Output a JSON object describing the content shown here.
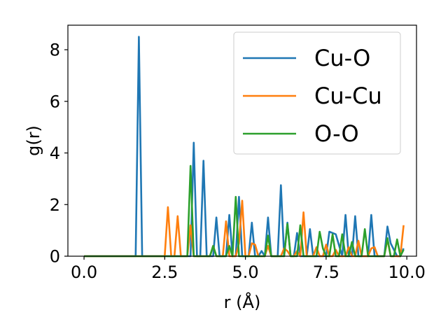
{
  "chart_data": {
    "type": "line",
    "xlabel": "r (Å)",
    "ylabel": "g(r)",
    "xlim": [
      -0.5,
      10.3
    ],
    "ylim": [
      0,
      8.95
    ],
    "xticks": [
      0.0,
      2.5,
      5.0,
      7.5,
      10.0
    ],
    "xtick_labels": [
      "0.0",
      "2.5",
      "5.0",
      "7.5",
      "10.0"
    ],
    "yticks": [
      0,
      2,
      4,
      6,
      8
    ],
    "ytick_labels": [
      "0",
      "2",
      "4",
      "6",
      "8"
    ],
    "grid": false,
    "legend_position": "top-right",
    "series": [
      {
        "name": "Cu-O",
        "color": "#1f77b4",
        "x": [
          0.0,
          1.6,
          1.7,
          1.8,
          3.3,
          3.4,
          3.5,
          3.6,
          3.7,
          3.8,
          4.0,
          4.1,
          4.2,
          4.4,
          4.5,
          4.6,
          4.7,
          4.8,
          4.9,
          5.1,
          5.2,
          5.3,
          5.4,
          5.5,
          5.6,
          5.7,
          5.8,
          5.9,
          6.0,
          6.1,
          6.2,
          6.3,
          6.4,
          6.5,
          6.6,
          6.7,
          6.8,
          6.9,
          7.0,
          7.1,
          7.3,
          7.4,
          7.5,
          7.6,
          7.7,
          7.8,
          8.0,
          8.1,
          8.2,
          8.3,
          8.4,
          8.5,
          8.7,
          8.8,
          8.9,
          9.0,
          9.3,
          9.4,
          9.5,
          9.7,
          9.8,
          9.9
        ],
        "y": [
          0.0,
          0.0,
          8.5,
          0.0,
          0.0,
          4.4,
          0.0,
          0.0,
          3.7,
          0.0,
          0.0,
          1.5,
          0.0,
          0.0,
          1.6,
          0.0,
          0.0,
          2.3,
          0.0,
          0.0,
          1.3,
          0.0,
          0.0,
          0.2,
          0.0,
          1.5,
          0.0,
          0.0,
          0.0,
          2.75,
          0.0,
          1.3,
          0.0,
          0.0,
          0.9,
          0.0,
          0.0,
          0.0,
          1.05,
          0.0,
          0.0,
          0.0,
          0.0,
          0.95,
          0.9,
          0.85,
          0.0,
          1.6,
          0.0,
          0.0,
          1.55,
          0.0,
          0.0,
          0.0,
          1.6,
          0.0,
          0.0,
          1.15,
          0.5,
          0.0,
          0.0,
          0.3
        ]
      },
      {
        "name": "Cu-Cu",
        "color": "#ff7f0e",
        "x": [
          0.0,
          2.5,
          2.6,
          2.7,
          2.8,
          2.9,
          3.0,
          3.1,
          3.2,
          3.3,
          3.4,
          3.9,
          4.0,
          4.1,
          4.2,
          4.3,
          4.4,
          4.5,
          4.6,
          4.7,
          4.8,
          4.9,
          5.0,
          5.1,
          5.2,
          5.3,
          5.4,
          5.5,
          5.6,
          5.7,
          5.8,
          5.9,
          6.0,
          6.1,
          6.2,
          6.3,
          6.4,
          6.5,
          6.6,
          6.7,
          6.8,
          6.9,
          7.0,
          7.1,
          7.2,
          7.3,
          7.4,
          7.5,
          7.6,
          7.7,
          7.8,
          7.9,
          8.0,
          8.1,
          8.2,
          8.3,
          8.4,
          8.5,
          8.6,
          8.7,
          8.8,
          8.9,
          9.0,
          9.1,
          9.2,
          9.3,
          9.4,
          9.5,
          9.6,
          9.7,
          9.8,
          9.9
        ],
        "y": [
          0.0,
          0.0,
          1.9,
          0.0,
          0.0,
          1.55,
          0.0,
          0.0,
          0.0,
          1.2,
          0.0,
          0.0,
          0.4,
          0.0,
          0.0,
          0.0,
          1.35,
          0.0,
          0.0,
          0.0,
          0.5,
          2.15,
          0.0,
          0.0,
          0.5,
          0.45,
          0.0,
          0.0,
          0.0,
          0.4,
          0.0,
          0.0,
          0.0,
          0.0,
          0.3,
          0.2,
          0.0,
          0.0,
          0.2,
          0.0,
          1.7,
          0.0,
          0.0,
          0.0,
          0.35,
          0.0,
          0.0,
          0.45,
          0.0,
          0.0,
          0.25,
          0.0,
          0.0,
          0.0,
          0.35,
          0.0,
          0.0,
          0.6,
          0.0,
          0.0,
          0.0,
          0.3,
          0.35,
          0.0,
          0.0,
          0.0,
          0.65,
          0.0,
          0.0,
          0.0,
          0.0,
          1.2
        ]
      },
      {
        "name": "O-O",
        "color": "#2ca02c",
        "x": [
          0.0,
          3.2,
          3.3,
          3.4,
          3.5,
          3.6,
          3.7,
          3.8,
          3.9,
          4.0,
          4.1,
          4.2,
          4.3,
          4.4,
          4.5,
          4.6,
          4.7,
          4.8,
          4.9,
          5.0,
          5.1,
          5.2,
          5.3,
          5.4,
          5.5,
          5.6,
          5.7,
          5.8,
          5.9,
          6.0,
          6.1,
          6.2,
          6.3,
          6.4,
          6.5,
          6.6,
          6.7,
          6.8,
          6.9,
          7.0,
          7.1,
          7.2,
          7.3,
          7.4,
          7.5,
          7.6,
          7.7,
          7.8,
          7.9,
          8.0,
          8.1,
          8.2,
          8.3,
          8.4,
          8.5,
          8.6,
          8.7,
          8.8,
          8.9,
          9.0,
          9.1,
          9.2,
          9.3,
          9.4,
          9.5,
          9.6,
          9.7,
          9.8,
          9.9
        ],
        "y": [
          0.0,
          0.0,
          3.5,
          0.0,
          0.0,
          0.0,
          0.0,
          0.0,
          0.0,
          0.4,
          0.0,
          0.0,
          0.0,
          0.0,
          0.4,
          0.0,
          2.3,
          0.0,
          0.0,
          0.0,
          0.0,
          0.0,
          0.0,
          0.0,
          0.0,
          0.0,
          0.8,
          0.0,
          0.0,
          0.0,
          0.0,
          0.0,
          1.25,
          0.0,
          0.0,
          0.0,
          1.2,
          0.0,
          0.0,
          0.0,
          0.0,
          0.0,
          0.95,
          0.3,
          0.0,
          0.0,
          0.85,
          0.0,
          0.0,
          0.85,
          0.0,
          0.0,
          0.55,
          0.0,
          0.0,
          0.0,
          1.05,
          0.0,
          0.0,
          0.0,
          0.0,
          0.0,
          0.0,
          0.7,
          0.0,
          0.0,
          0.65,
          0.0,
          0.25
        ]
      }
    ]
  }
}
